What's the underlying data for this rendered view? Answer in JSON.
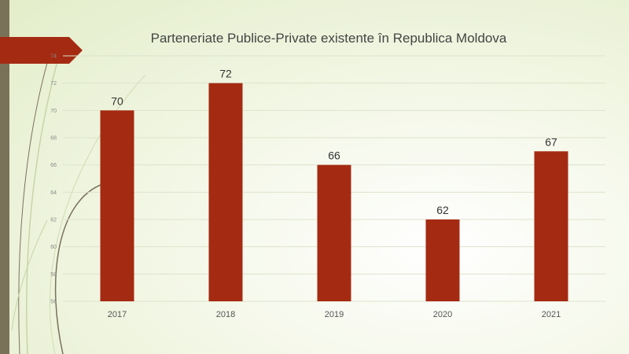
{
  "colors": {
    "bar": "#a52a12",
    "accent_arrow": "#a52a12",
    "side_bar": "#7a7258"
  },
  "chart_data": {
    "type": "bar",
    "title": "Parteneriate Publice-Private existente în Republica Moldova",
    "categories": [
      "2017",
      "2018",
      "2019",
      "2020",
      "2021"
    ],
    "values": [
      70,
      72,
      66,
      62,
      67
    ],
    "ylim": [
      56,
      74
    ],
    "yticks": [
      56,
      58,
      60,
      62,
      64,
      66,
      68,
      70,
      72,
      74
    ],
    "grid": true,
    "legend": "none",
    "data_labels": true
  }
}
